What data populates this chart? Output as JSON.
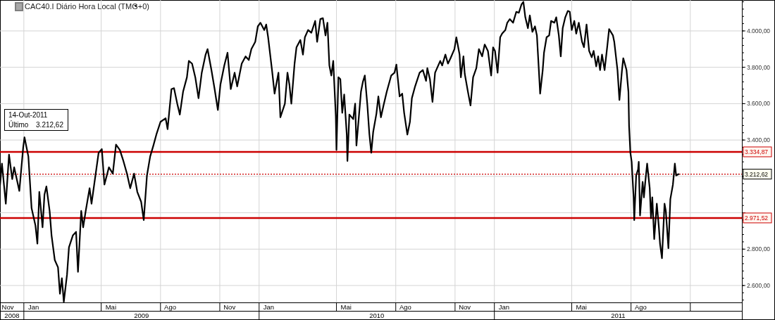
{
  "chart_data": {
    "type": "line",
    "title": "CAC40.I Diário Hora Local (TMG+0)",
    "annotations": [
      "14-Out-2011",
      "Último",
      "3.212,62",
      "2008",
      "2009",
      "2010",
      "2011"
    ],
    "xlim": [
      "2008-11-25",
      "2012-01-20"
    ],
    "xticks": [
      {
        "value": "2008-11-28",
        "label": "Nov"
      },
      {
        "value": "2009-01-01",
        "label": null
      },
      {
        "value": "2009-01-16",
        "label": "Jan"
      },
      {
        "value": "2009-05-01",
        "label": null
      },
      {
        "value": "2009-05-16",
        "label": "Mai"
      },
      {
        "value": "2009-08-01",
        "label": null
      },
      {
        "value": "2009-08-16",
        "label": "Ago"
      },
      {
        "value": "2009-11-01",
        "label": null
      },
      {
        "value": "2009-11-16",
        "label": "Nov"
      },
      {
        "value": "2010-01-01",
        "label": null
      },
      {
        "value": "2010-01-16",
        "label": "Jan"
      },
      {
        "value": "2010-05-01",
        "label": null
      },
      {
        "value": "2010-05-16",
        "label": "Mai"
      },
      {
        "value": "2010-08-01",
        "label": null
      },
      {
        "value": "2010-08-16",
        "label": "Ago"
      },
      {
        "value": "2010-11-01",
        "label": null
      },
      {
        "value": "2010-11-16",
        "label": "Nov"
      },
      {
        "value": "2011-01-01",
        "label": null
      },
      {
        "value": "2011-01-16",
        "label": "Jan"
      },
      {
        "value": "2011-05-01",
        "label": null
      },
      {
        "value": "2011-05-16",
        "label": "Mai"
      },
      {
        "value": "2011-08-01",
        "label": null
      },
      {
        "value": "2011-08-16",
        "label": "Ago"
      },
      {
        "value": "2011-11-01",
        "label": null
      }
    ],
    "ylim": [
      2507,
      4170
    ],
    "yticks": [
      {
        "value": 2600,
        "label": "2.600,00"
      },
      {
        "value": 2800,
        "label": "2.800,00"
      },
      {
        "value": 3000,
        "label": null
      },
      {
        "value": 3200,
        "label": null
      },
      {
        "value": 3400,
        "label": "3.400,00"
      },
      {
        "value": 3600,
        "label": "3.600,00"
      },
      {
        "value": 3800,
        "label": "3.800,00"
      },
      {
        "value": 4000,
        "label": "4.000,00"
      }
    ],
    "grid": true,
    "marker": "none",
    "line_style": "solid",
    "ref_lines": [
      {
        "axis": "y",
        "value": 3334.87,
        "label": "3.334,87",
        "color": "#cc0000",
        "line_style": "solid"
      },
      {
        "axis": "y",
        "value": 3212.62,
        "label": "3.212,62",
        "color": "#cc0000",
        "line_style": "dotted"
      },
      {
        "axis": "y",
        "value": 2971.52,
        "label": "2.971,52",
        "color": "#cc0000",
        "line_style": "solid"
      }
    ],
    "series": [
      {
        "color": "#000000",
        "x": [
          "2008-11-25",
          "2008-11-28",
          "2008-12-04",
          "2008-12-09",
          "2008-12-14",
          "2008-12-17",
          "2008-12-25",
          "2008-12-31",
          "2009-01-02",
          "2009-01-08",
          "2009-01-13",
          "2009-01-19",
          "2009-01-22",
          "2009-01-25",
          "2009-01-30",
          "2009-02-02",
          "2009-02-05",
          "2009-02-10",
          "2009-02-13",
          "2009-02-18",
          "2009-02-23",
          "2009-02-26",
          "2009-03-01",
          "2009-03-04",
          "2009-03-09",
          "2009-03-12",
          "2009-03-18",
          "2009-03-23",
          "2009-03-26",
          "2009-03-31",
          "2009-04-03",
          "2009-04-07",
          "2009-04-13",
          "2009-04-16",
          "2009-04-27",
          "2009-05-02",
          "2009-05-06",
          "2009-05-13",
          "2009-05-19",
          "2009-05-24",
          "2009-05-30",
          "2009-06-04",
          "2009-06-10",
          "2009-06-15",
          "2009-06-21",
          "2009-06-26",
          "2009-07-02",
          "2009-07-06",
          "2009-07-11",
          "2009-07-16",
          "2009-07-21",
          "2009-07-26",
          "2009-08-01",
          "2009-08-09",
          "2009-08-12",
          "2009-08-18",
          "2009-08-22",
          "2009-08-27",
          "2009-08-31",
          "2009-09-05",
          "2009-09-11",
          "2009-09-14",
          "2009-09-19",
          "2009-09-24",
          "2009-09-29",
          "2009-10-04",
          "2009-10-10",
          "2009-10-13",
          "2009-10-19",
          "2009-10-24",
          "2009-10-29",
          "2009-11-02",
          "2009-11-08",
          "2009-11-13",
          "2009-11-18",
          "2009-11-24",
          "2009-11-28",
          "2009-12-05",
          "2009-12-11",
          "2009-12-16",
          "2009-12-20",
          "2009-12-26",
          "2009-12-30",
          "2010-01-03",
          "2010-01-09",
          "2010-01-12",
          "2010-01-15",
          "2010-01-21",
          "2010-01-25",
          "2010-01-31",
          "2010-02-03",
          "2010-02-10",
          "2010-02-14",
          "2010-02-17",
          "2010-02-20",
          "2010-02-25",
          "2010-02-28",
          "2010-03-06",
          "2010-03-10",
          "2010-03-13",
          "2010-03-18",
          "2010-03-23",
          "2010-03-29",
          "2010-04-01",
          "2010-04-06",
          "2010-04-10",
          "2010-04-14",
          "2010-04-17",
          "2010-04-20",
          "2010-04-23",
          "2010-04-26",
          "2010-04-30",
          "2010-05-01",
          "2010-05-04",
          "2010-05-07",
          "2010-05-10",
          "2010-05-13",
          "2010-05-17",
          "2010-05-18",
          "2010-05-21",
          "2010-05-27",
          "2010-05-30",
          "2010-06-01",
          "2010-06-08",
          "2010-06-11",
          "2010-06-14",
          "2010-06-18",
          "2010-06-21",
          "2010-06-24",
          "2010-06-27",
          "2010-07-02",
          "2010-07-05",
          "2010-07-09",
          "2010-07-13",
          "2010-07-18",
          "2010-07-25",
          "2010-07-30",
          "2010-08-02",
          "2010-08-07",
          "2010-08-11",
          "2010-08-14",
          "2010-08-19",
          "2010-08-23",
          "2010-08-26",
          "2010-08-31",
          "2010-09-07",
          "2010-09-12",
          "2010-09-17",
          "2010-09-19",
          "2010-09-23",
          "2010-09-27",
          "2010-10-01",
          "2010-10-09",
          "2010-10-12",
          "2010-10-17",
          "2010-10-21",
          "2010-10-25",
          "2010-10-31",
          "2010-11-03",
          "2010-11-08",
          "2010-11-10",
          "2010-11-14",
          "2010-11-16",
          "2010-11-21",
          "2010-11-25",
          "2010-11-29",
          "2010-12-04",
          "2010-12-08",
          "2010-12-13",
          "2010-12-17",
          "2010-12-22",
          "2010-12-27",
          "2010-12-30",
          "2011-01-02",
          "2011-01-06",
          "2011-01-10",
          "2011-01-13",
          "2011-01-18",
          "2011-01-21",
          "2011-01-25",
          "2011-01-30",
          "2011-02-04",
          "2011-02-08",
          "2011-02-12",
          "2011-02-15",
          "2011-02-18",
          "2011-02-22",
          "2011-02-25",
          "2011-03-01",
          "2011-03-05",
          "2011-03-08",
          "2011-03-11",
          "2011-03-13",
          "2011-03-17",
          "2011-03-19",
          "2011-03-23",
          "2011-03-27",
          "2011-03-30",
          "2011-04-04",
          "2011-04-07",
          "2011-04-11",
          "2011-04-14",
          "2011-04-17",
          "2011-04-21",
          "2011-04-25",
          "2011-04-28",
          "2011-05-01",
          "2011-05-05",
          "2011-05-08",
          "2011-05-12",
          "2011-05-17",
          "2011-05-20",
          "2011-05-24",
          "2011-05-28",
          "2011-06-01",
          "2011-06-04",
          "2011-06-08",
          "2011-06-11",
          "2011-06-14",
          "2011-06-17",
          "2011-06-21",
          "2011-06-25",
          "2011-06-28",
          "2011-07-04",
          "2011-07-06",
          "2011-07-11",
          "2011-07-14",
          "2011-07-18",
          "2011-07-20",
          "2011-07-25",
          "2011-07-28",
          "2011-07-29",
          "2011-07-31",
          "2011-08-02",
          "2011-08-05",
          "2011-08-06",
          "2011-08-09",
          "2011-08-12",
          "2011-08-13",
          "2011-08-15",
          "2011-08-19",
          "2011-08-21",
          "2011-08-23",
          "2011-08-26",
          "2011-08-30",
          "2011-09-01",
          "2011-09-03",
          "2011-09-06",
          "2011-09-10",
          "2011-09-13",
          "2011-09-15",
          "2011-09-18",
          "2011-09-22",
          "2011-09-24",
          "2011-09-28",
          "2011-10-01",
          "2011-10-05",
          "2011-10-08",
          "2011-10-10",
          "2011-10-14"
        ],
        "values": [
          3150,
          3270,
          3050,
          3320,
          3185,
          3250,
          3120,
          3360,
          3415,
          3310,
          3025,
          2930,
          2830,
          3115,
          2920,
          3100,
          3145,
          3010,
          2875,
          2740,
          2700,
          2555,
          2640,
          2510,
          2660,
          2810,
          2875,
          2895,
          2675,
          3010,
          2920,
          3010,
          3135,
          3050,
          3330,
          3350,
          3155,
          3250,
          3215,
          3375,
          3345,
          3290,
          3215,
          3135,
          3215,
          3115,
          3060,
          2960,
          3205,
          3310,
          3370,
          3435,
          3500,
          3520,
          3460,
          3680,
          3685,
          3600,
          3540,
          3665,
          3745,
          3835,
          3820,
          3745,
          3630,
          3770,
          3870,
          3900,
          3785,
          3680,
          3565,
          3705,
          3810,
          3880,
          3680,
          3770,
          3695,
          3820,
          3860,
          3840,
          3900,
          3940,
          4025,
          4045,
          4005,
          4035,
          3965,
          3785,
          3655,
          3770,
          3525,
          3600,
          3770,
          3705,
          3600,
          3820,
          3910,
          3950,
          3870,
          3965,
          4005,
          3990,
          4055,
          3940,
          4065,
          4070,
          3975,
          4045,
          3810,
          3755,
          3835,
          3530,
          3345,
          3745,
          3735,
          3550,
          3650,
          3430,
          3285,
          3540,
          3515,
          3600,
          3370,
          3665,
          3720,
          3755,
          3590,
          3435,
          3330,
          3445,
          3545,
          3640,
          3525,
          3590,
          3665,
          3755,
          3770,
          3815,
          3640,
          3655,
          3550,
          3430,
          3500,
          3630,
          3695,
          3770,
          3785,
          3725,
          3795,
          3735,
          3610,
          3770,
          3835,
          3810,
          3870,
          3820,
          3850,
          3900,
          3965,
          3870,
          3745,
          3860,
          3765,
          3665,
          3590,
          3745,
          3795,
          3900,
          3860,
          3925,
          3890,
          3755,
          3910,
          3890,
          3770,
          3965,
          3985,
          4005,
          4045,
          4065,
          4045,
          4105,
          4100,
          4145,
          4160,
          4075,
          4015,
          4085,
          3995,
          4025,
          3975,
          3785,
          3655,
          3785,
          3880,
          3965,
          3975,
          4055,
          4045,
          4075,
          3975,
          3860,
          4015,
          4075,
          4110,
          4105,
          4005,
          4055,
          3985,
          4045,
          3940,
          3910,
          4035,
          3890,
          3855,
          3890,
          3805,
          3860,
          3785,
          3870,
          3785,
          3910,
          4010,
          3975,
          3940,
          3785,
          3620,
          3785,
          3850,
          3785,
          3665,
          3475,
          3330,
          3280,
          3085,
          2960,
          3205,
          3240,
          3280,
          2985,
          3170,
          3085,
          3165,
          3270,
          3135,
          2970,
          3085,
          2855,
          3050,
          2930,
          2830,
          2750,
          3050,
          3010,
          2805,
          3075,
          3155,
          3270,
          3205,
          3212.62
        ]
      }
    ]
  }
}
